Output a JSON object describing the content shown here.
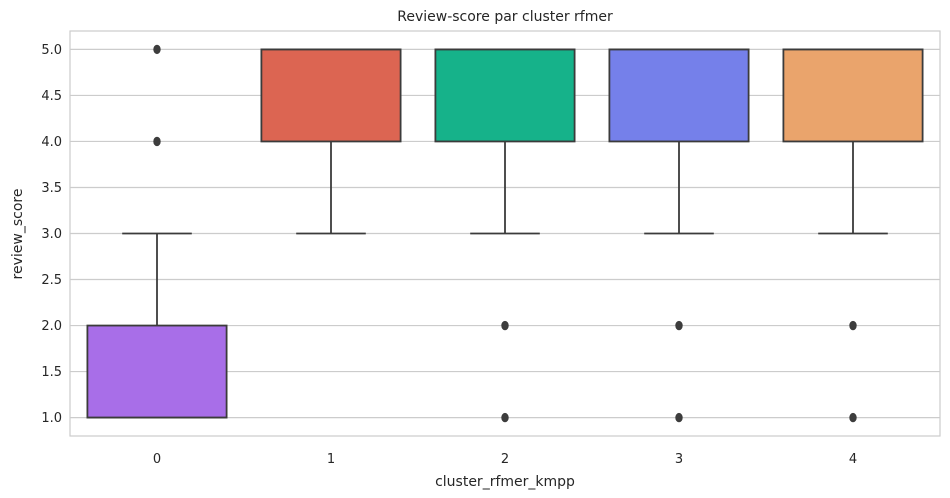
{
  "chart_data": {
    "type": "boxplot",
    "title": "Review-score par cluster rfmer",
    "xlabel": "cluster_rfmer_kmpp",
    "ylabel": "review_score",
    "categories": [
      "0",
      "1",
      "2",
      "3",
      "4"
    ],
    "ylim": [
      0.8,
      5.2
    ],
    "yticks": [
      "1.0",
      "1.5",
      "2.0",
      "2.5",
      "3.0",
      "3.5",
      "4.0",
      "4.5",
      "5.0"
    ],
    "grid": true,
    "boxes": [
      {
        "category": "0",
        "q1": 1,
        "median": 1,
        "q3": 2,
        "whisker_low": 1,
        "whisker_high": 3,
        "outliers": [
          4,
          5
        ],
        "color": "#a86ee8"
      },
      {
        "category": "1",
        "q1": 4,
        "median": 5,
        "q3": 5,
        "whisker_low": 3,
        "whisker_high": 5,
        "outliers": [],
        "color": "#dc6552"
      },
      {
        "category": "2",
        "q1": 4,
        "median": 5,
        "q3": 5,
        "whisker_low": 3,
        "whisker_high": 5,
        "outliers": [
          1,
          2
        ],
        "color": "#16b28a"
      },
      {
        "category": "3",
        "q1": 4,
        "median": 5,
        "q3": 5,
        "whisker_low": 3,
        "whisker_high": 5,
        "outliers": [
          1,
          2
        ],
        "color": "#7580ea"
      },
      {
        "category": "4",
        "q1": 4,
        "median": 5,
        "q3": 5,
        "whisker_low": 3,
        "whisker_high": 5,
        "outliers": [
          1,
          2
        ],
        "color": "#eaa46c"
      }
    ]
  }
}
